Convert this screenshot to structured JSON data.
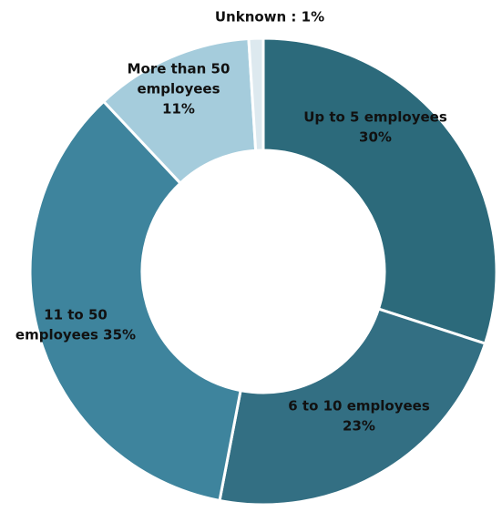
{
  "chart_data": {
    "type": "pie",
    "donut": true,
    "categories": [
      "Up to 5 employees",
      "6 to 10 employees",
      "11 to 50 employees",
      "More than 50 employees",
      "Unknown"
    ],
    "values": [
      30,
      23,
      35,
      11,
      1
    ],
    "unit": "%",
    "colors": [
      "#2c6a7b",
      "#336f83",
      "#3e849d",
      "#a5ccdc",
      "#dde9ef"
    ],
    "labels": [
      {
        "lines": [
          "Up to 5 employees",
          "30%"
        ]
      },
      {
        "lines": [
          "6 to 10 employees",
          "23%"
        ]
      },
      {
        "lines": [
          "11 to 50",
          "employees 35%"
        ]
      },
      {
        "lines": [
          "More than 50",
          "employees",
          "11%"
        ]
      },
      {
        "lines": [
          "Unknown : 1%"
        ]
      }
    ],
    "title": "",
    "legend": "none"
  }
}
